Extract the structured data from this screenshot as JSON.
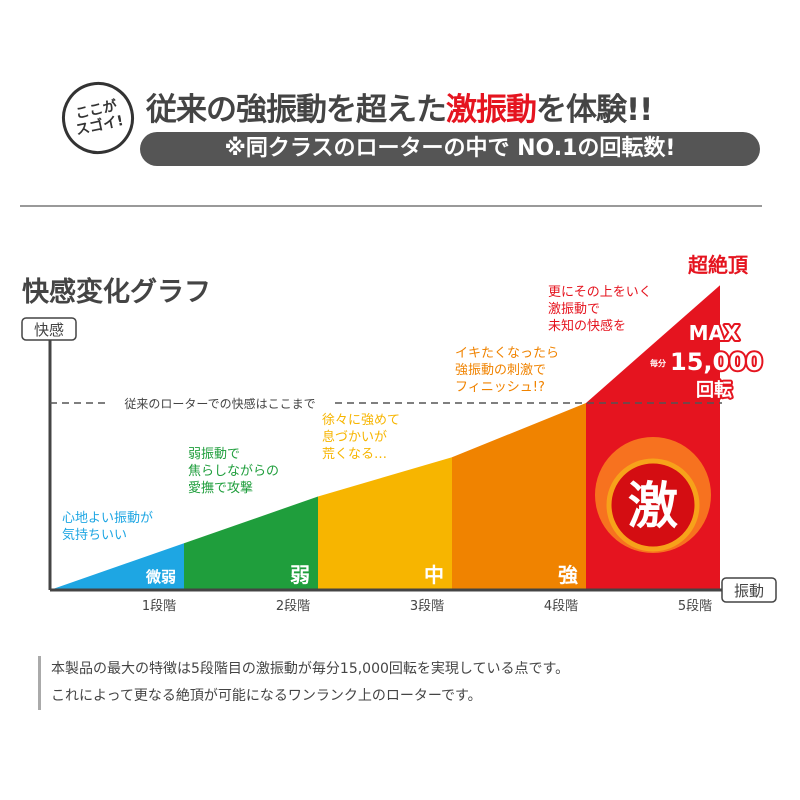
{
  "header": {
    "badge": "ここが\nスゴイ!",
    "headline_pre": "従来の強振動を超えた",
    "headline_accent": "激振動",
    "headline_post": "を体験!!",
    "subheadline": "※同クラスのローターの中で NO.1の回転数!"
  },
  "colors": {
    "accent_red": "#e5141f",
    "blue": "#1ea6e3",
    "green": "#1f9e3c",
    "yellow": "#f7b500",
    "orange": "#f08300",
    "red": "#e5141f"
  },
  "chart_data": {
    "type": "area",
    "title": "快感変化グラフ",
    "ylabel": "快感",
    "xlabel": "振動",
    "categories": [
      "1段階",
      "2段階",
      "3段階",
      "4段階",
      "5段階"
    ],
    "stage_labels": [
      "微弱",
      "弱",
      "中",
      "強",
      "激"
    ],
    "level_at_stage_end": [
      0.25,
      0.5,
      0.71,
      1.0,
      1.63
    ],
    "reference_line": {
      "value": 1.0,
      "label": "従来のローターでの快感はここまで"
    },
    "annotations": [
      [
        "心地よい振動が",
        "気持ちいい"
      ],
      [
        "弱振動で",
        "焦らしながらの",
        "愛撫で攻撃"
      ],
      [
        "徐々に強めて",
        "息づかいが",
        "荒くなる…"
      ],
      [
        "イキたくなったら",
        "強振動の刺激で",
        "フィニッシュ!?"
      ],
      [
        "更にその上をいく",
        "激振動で",
        "未知の快感を"
      ]
    ],
    "peak_label": "超絶頂",
    "max_label": "MAX",
    "per_minute": "毎分",
    "max_value": "15,000",
    "max_unit": "回転"
  },
  "description": [
    "本製品の最大の特徴は5段階目の激振動が毎分15,000回転を実現している点です。",
    "これによって更なる絶頂が可能になるワンランク上のローターです。"
  ]
}
